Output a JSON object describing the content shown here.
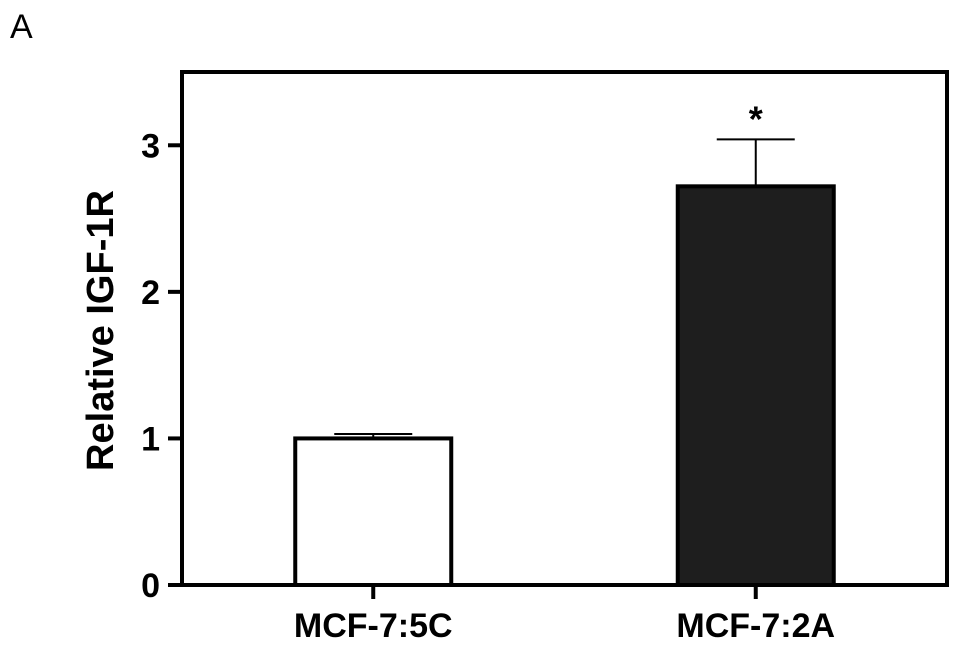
{
  "panel_label": "A",
  "chart_data": {
    "type": "bar",
    "categories": [
      "MCF-7:5C",
      "MCF-7:2A"
    ],
    "values": [
      1.0,
      2.72
    ],
    "error": [
      0.03,
      0.32
    ],
    "significance": [
      "",
      "*"
    ],
    "bar_colors": [
      "#ffffff",
      "#1e1e1e"
    ],
    "ylabel": "Relative IGF-1R",
    "xlabel": "",
    "ylim": [
      0,
      3.5
    ],
    "yticks": [
      0,
      1,
      2,
      3
    ],
    "grid": false
  }
}
